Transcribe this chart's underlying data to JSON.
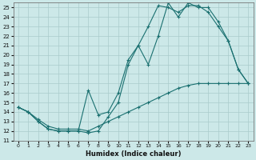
{
  "xlabel": "Humidex (Indice chaleur)",
  "xlim": [
    -0.5,
    23.5
  ],
  "ylim": [
    11,
    25.5
  ],
  "yticks": [
    11,
    12,
    13,
    14,
    15,
    16,
    17,
    18,
    19,
    20,
    21,
    22,
    23,
    24,
    25
  ],
  "xticks": [
    0,
    1,
    2,
    3,
    4,
    5,
    6,
    7,
    8,
    9,
    10,
    11,
    12,
    13,
    14,
    15,
    16,
    17,
    18,
    19,
    20,
    21,
    22,
    23
  ],
  "bg_color": "#cce8e8",
  "line_color": "#1a7070",
  "grid_color": "#aacccc",
  "curve1_x": [
    0,
    1,
    2,
    3,
    4,
    5,
    6,
    7,
    8,
    9,
    10,
    11,
    12,
    13,
    14,
    15,
    16,
    17,
    18,
    19,
    20,
    21,
    22,
    23
  ],
  "curve1_y": [
    14.5,
    14.0,
    13.0,
    12.2,
    12.0,
    12.0,
    12.0,
    11.8,
    12.0,
    13.5,
    15.0,
    19.0,
    21.0,
    23.0,
    25.2,
    25.0,
    24.5,
    25.2,
    25.2,
    24.5,
    23.0,
    21.5,
    18.5,
    17.0
  ],
  "curve2_x": [
    0,
    1,
    2,
    3,
    4,
    5,
    6,
    7,
    8,
    9,
    10,
    11,
    12,
    13,
    14,
    15,
    16,
    17,
    18,
    19,
    20,
    21,
    22,
    23
  ],
  "curve2_y": [
    14.5,
    14.0,
    13.0,
    12.2,
    12.0,
    12.0,
    12.0,
    16.3,
    13.7,
    14.0,
    16.0,
    19.5,
    21.0,
    19.0,
    22.0,
    25.5,
    24.0,
    25.5,
    25.0,
    25.0,
    23.5,
    21.5,
    18.5,
    17.0
  ],
  "curve3_x": [
    0,
    1,
    2,
    3,
    4,
    5,
    6,
    7,
    8,
    9,
    10,
    11,
    12,
    13,
    14,
    15,
    16,
    17,
    18,
    19,
    20,
    21,
    22,
    23
  ],
  "curve3_y": [
    14.5,
    14.0,
    13.2,
    12.5,
    12.2,
    12.2,
    12.2,
    12.0,
    12.5,
    13.0,
    13.5,
    14.0,
    14.5,
    15.0,
    15.5,
    16.0,
    16.5,
    16.8,
    17.0,
    17.0,
    17.0,
    17.0,
    17.0,
    17.0
  ]
}
